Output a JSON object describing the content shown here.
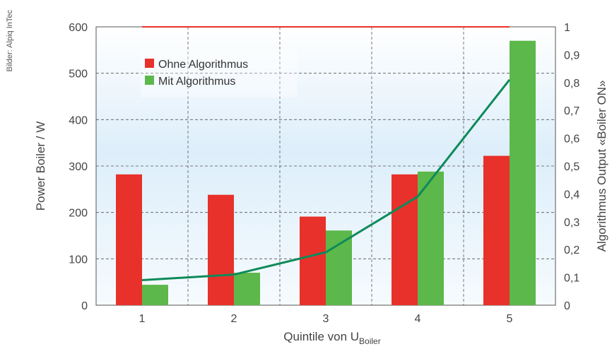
{
  "credit": "Bilder: Alpiq InTec",
  "chart_data": {
    "type": "bar",
    "categories": [
      "1",
      "2",
      "3",
      "4",
      "5"
    ],
    "series": [
      {
        "name": "Ohne Algorithmus",
        "color": "#e8312a",
        "axis": "left",
        "values": [
          282,
          238,
          191,
          282,
          322
        ]
      },
      {
        "name": "Mit Algorithmus",
        "color": "#5cb84a",
        "axis": "left",
        "values": [
          44,
          70,
          161,
          288,
          570
        ]
      }
    ],
    "line_series": {
      "color": "#0e8a5a",
      "axis": "right",
      "values": [
        0.09,
        0.11,
        0.19,
        0.39,
        0.81
      ]
    },
    "reference_line": {
      "color": "#e8312a",
      "axis": "right",
      "value": 1.0
    },
    "xlabel": "Quintile von U",
    "xlabel_subscript": "Boiler",
    "ylabel": "Power Boiler / W",
    "y2label": "Algorithmus Output «Boiler ON»",
    "ylim": [
      0,
      600
    ],
    "y2lim": [
      0,
      1
    ],
    "yticks": [
      "0",
      "100",
      "200",
      "300",
      "400",
      "500",
      "600"
    ],
    "y2ticks": [
      "0",
      "0,1",
      "0,2",
      "0,3",
      "0,4",
      "0,5",
      "0,6",
      "0,7",
      "0,8",
      "0,9",
      "1"
    ],
    "grid": true,
    "legend_position": "top-left"
  }
}
